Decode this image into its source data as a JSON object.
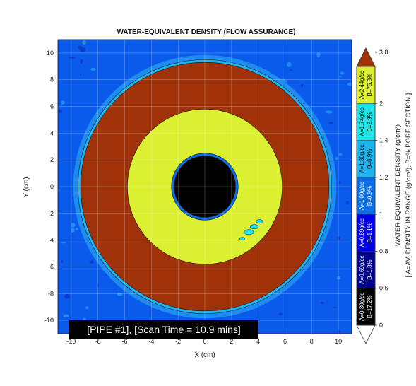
{
  "chart_data": {
    "type": "heatmap",
    "title": "WATER-EQUIVALENT DENSITY (FLOW ASSURANCE)",
    "xlabel": "X (cm)",
    "ylabel": "Y (cm)",
    "xlim": [
      -11,
      11
    ],
    "ylim": [
      -11,
      11
    ],
    "xticks": [
      "-10",
      "-8",
      "-6",
      "-4",
      "-2",
      "0",
      "2",
      "4",
      "6",
      "8",
      "10"
    ],
    "yticks": [
      "10",
      "8",
      "6",
      "4",
      "2",
      "0",
      "-2",
      "-4",
      "-6",
      "-8",
      "-10"
    ],
    "grid": true,
    "annotation": "[PIPE #1], [Scan Time = 10.9 mins]",
    "background_value": 0.9,
    "rings": [
      {
        "outer_radius_cm": 9.5,
        "inner_radius_cm": 9.3,
        "value": 1.3
      },
      {
        "outer_radius_cm": 9.3,
        "inner_radius_cm": 5.8,
        "value": 3.0
      },
      {
        "outer_radius_cm": 5.8,
        "inner_radius_cm": 2.5,
        "value": 2.44
      },
      {
        "outer_radius_cm": 2.5,
        "inner_radius_cm": 2.3,
        "value": 1.09
      },
      {
        "outer_radius_cm": 2.3,
        "inner_radius_cm": 0,
        "value": 0.3
      }
    ],
    "colorbar": {
      "label": "WATER-EQUIVALENT DENSITY (g/cm³)",
      "sublabel": "[ A=AV. DENSITY IN RANGE (g/cm³), B=% BORE SECTION ]",
      "top_label": "3.8",
      "ticks": [
        "3.8",
        "2",
        "1.4",
        "1.2",
        "1",
        "0.8",
        "0.6",
        "0"
      ],
      "segments": [
        {
          "A": "A=0.30g/cc",
          "B": "B=17.2%",
          "color": "#000000",
          "text_color": "#ffffff"
        },
        {
          "A": "A=0.69g/cc",
          "B": "B=1.3%",
          "color": "#00008c",
          "text_color": "#ffffff"
        },
        {
          "A": "A=0.89g/cc",
          "B": "B=1.1%",
          "color": "#0000e6",
          "text_color": "#ffffff"
        },
        {
          "A": "A=1.09g/cc",
          "B": "B=0.9%",
          "color": "#0a6ee6",
          "text_color": "#ffffff"
        },
        {
          "A": "A=1.30g/cc",
          "B": "B=0.9%",
          "color": "#1eb4f0",
          "text_color": "#000000"
        },
        {
          "A": "A=1.74g/cc",
          "B": "B=2.9%",
          "color": "#1ee6e6",
          "text_color": "#000000"
        },
        {
          "A": "A=2.44g/cc",
          "B": "B=75.8%",
          "color": "#dcf032",
          "text_color": "#000000"
        }
      ],
      "top_color": "#a0320a"
    }
  }
}
